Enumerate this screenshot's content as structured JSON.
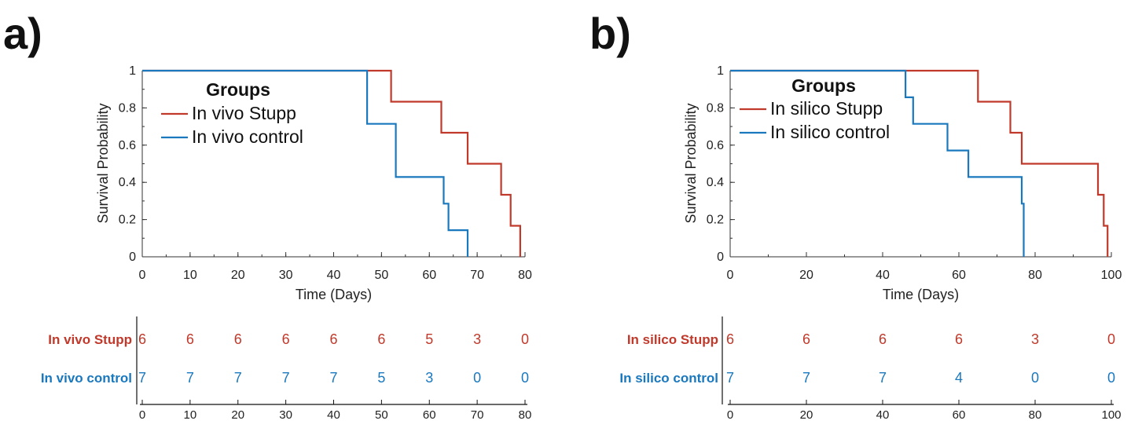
{
  "colors": {
    "stupp": "#c0392b",
    "control": "#1a78be",
    "axis": "#333333",
    "text": "#222222"
  },
  "chart_data": [
    {
      "panel_label": "a)",
      "type": "line",
      "title": "",
      "xlabel": "Time (Days)",
      "ylabel": "Survival Probability",
      "xlim": [
        0,
        80
      ],
      "ylim": [
        0,
        1
      ],
      "xticks": [
        0,
        10,
        20,
        30,
        40,
        50,
        60,
        70,
        80
      ],
      "yticks": [
        0,
        0.2,
        0.4,
        0.6,
        0.8,
        1
      ],
      "ytick_labels": [
        "0",
        "0.2",
        "0.4",
        "0.6",
        "0.8",
        "1"
      ],
      "legend_title": "Groups",
      "legend_position": "top-left",
      "series": [
        {
          "name": "In vivo Stupp",
          "color_key": "stupp",
          "steps": [
            [
              0,
              1
            ],
            [
              52,
              1
            ],
            [
              52,
              0.8333
            ],
            [
              62.5,
              0.8333
            ],
            [
              62.5,
              0.6667
            ],
            [
              68,
              0.6667
            ],
            [
              68,
              0.5
            ],
            [
              75,
              0.5
            ],
            [
              75,
              0.3333
            ],
            [
              77,
              0.3333
            ],
            [
              77,
              0.1667
            ],
            [
              79,
              0.1667
            ],
            [
              79,
              0
            ]
          ]
        },
        {
          "name": "In vivo control",
          "color_key": "control",
          "steps": [
            [
              0,
              1
            ],
            [
              47,
              1
            ],
            [
              47,
              0.7143
            ],
            [
              53,
              0.7143
            ],
            [
              53,
              0.4286
            ],
            [
              63,
              0.4286
            ],
            [
              63,
              0.2857
            ],
            [
              64,
              0.2857
            ],
            [
              64,
              0.1429
            ],
            [
              68,
              0.1429
            ],
            [
              68,
              0
            ]
          ]
        }
      ],
      "risk_table": {
        "x": [
          0,
          10,
          20,
          30,
          40,
          50,
          60,
          70,
          80
        ],
        "rows": [
          {
            "label": "In vivo Stupp",
            "color_key": "stupp",
            "values": [
              "6",
              "6",
              "6",
              "6",
              "6",
              "6",
              "5",
              "3",
              "0"
            ]
          },
          {
            "label": "In vivo control",
            "color_key": "control",
            "values": [
              "7",
              "7",
              "7",
              "7",
              "7",
              "5",
              "3",
              "0",
              "0"
            ]
          }
        ]
      }
    },
    {
      "panel_label": "b)",
      "type": "line",
      "title": "",
      "xlabel": "Time (Days)",
      "ylabel": "Survival Probability",
      "xlim": [
        0,
        100
      ],
      "ylim": [
        0,
        1
      ],
      "xticks": [
        0,
        20,
        40,
        60,
        80,
        100
      ],
      "yticks": [
        0,
        0.2,
        0.4,
        0.6,
        0.8,
        1
      ],
      "ytick_labels": [
        "0",
        "0.2",
        "0.4",
        "0.6",
        "0.8",
        "1"
      ],
      "legend_title": "Groups",
      "legend_position": "top-left",
      "series": [
        {
          "name": "In silico Stupp",
          "color_key": "stupp",
          "steps": [
            [
              0,
              1
            ],
            [
              65,
              1
            ],
            [
              65,
              0.8333
            ],
            [
              73.5,
              0.8333
            ],
            [
              73.5,
              0.6667
            ],
            [
              76.5,
              0.6667
            ],
            [
              76.5,
              0.5
            ],
            [
              96.5,
              0.5
            ],
            [
              96.5,
              0.3333
            ],
            [
              98,
              0.3333
            ],
            [
              98,
              0.1667
            ],
            [
              99,
              0.1667
            ],
            [
              99,
              0
            ]
          ]
        },
        {
          "name": "In silico control",
          "color_key": "control",
          "steps": [
            [
              0,
              1
            ],
            [
              46,
              1
            ],
            [
              46,
              0.8571
            ],
            [
              48,
              0.8571
            ],
            [
              48,
              0.7143
            ],
            [
              57,
              0.7143
            ],
            [
              57,
              0.5714
            ],
            [
              62.5,
              0.5714
            ],
            [
              62.5,
              0.4286
            ],
            [
              76.5,
              0.4286
            ],
            [
              76.5,
              0.2857
            ],
            [
              77,
              0.2857
            ],
            [
              77,
              0
            ]
          ]
        }
      ],
      "risk_table": {
        "x": [
          0,
          20,
          40,
          60,
          80,
          100
        ],
        "rows": [
          {
            "label": "In silico Stupp",
            "color_key": "stupp",
            "values": [
              "6",
              "6",
              "6",
              "6",
              "3",
              "0"
            ]
          },
          {
            "label": "In silico control",
            "color_key": "control",
            "values": [
              "7",
              "7",
              "7",
              "4",
              "0",
              "0"
            ]
          }
        ]
      }
    }
  ]
}
